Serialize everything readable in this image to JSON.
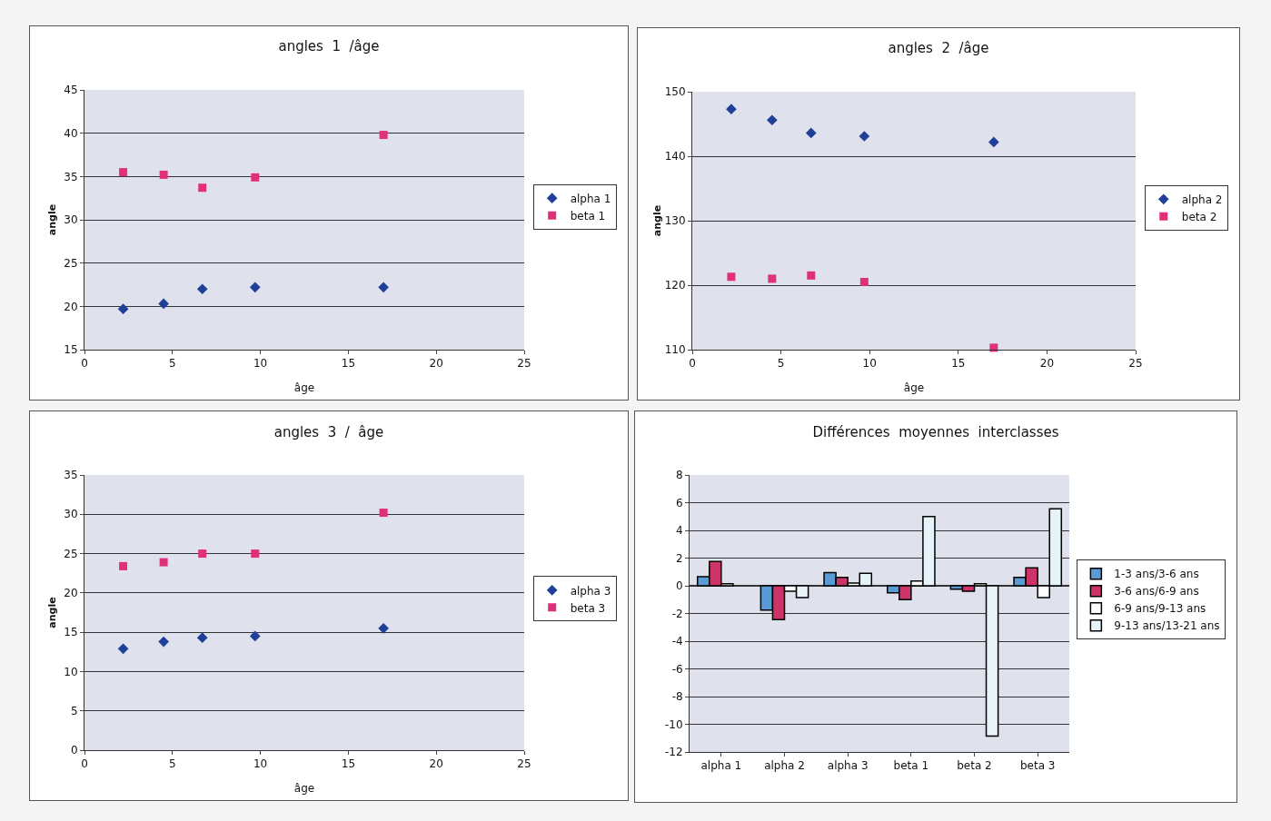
{
  "chart_data": [
    {
      "type": "scatter",
      "title": "angles  1  /âge",
      "xlabel": "âge",
      "ylabel": "angle",
      "xlim": [
        0,
        25
      ],
      "xticks": [
        0,
        5,
        10,
        15,
        20,
        25
      ],
      "ylim": [
        15,
        45
      ],
      "yticks": [
        15,
        20,
        25,
        30,
        35,
        40,
        45
      ],
      "grid": "y",
      "legend": "right",
      "x": [
        2.2,
        4.5,
        6.7,
        9.7,
        17
      ],
      "series": [
        {
          "name": "alpha 1",
          "color": "#1f3f99",
          "marker": "diamond",
          "values": [
            19.7,
            20.3,
            22,
            22.2,
            22.2
          ]
        },
        {
          "name": "beta 1",
          "color": "#e0307a",
          "marker": "square",
          "values": [
            35.5,
            35.2,
            33.7,
            34.9,
            39.8
          ]
        }
      ]
    },
    {
      "type": "scatter",
      "title": "angles  2  /âge",
      "xlabel": "âge",
      "ylabel": "angle",
      "xlim": [
        0,
        25
      ],
      "xticks": [
        0,
        5,
        10,
        15,
        20,
        25
      ],
      "ylim": [
        110,
        150
      ],
      "yticks": [
        110,
        120,
        130,
        140,
        150
      ],
      "grid": "y",
      "legend": "right",
      "x": [
        2.2,
        4.5,
        6.7,
        9.7,
        17
      ],
      "series": [
        {
          "name": "alpha 2",
          "color": "#1f3f99",
          "marker": "diamond",
          "values": [
            147.3,
            145.6,
            143.6,
            143.1,
            142.2
          ]
        },
        {
          "name": "beta 2",
          "color": "#e0307a",
          "marker": "square",
          "values": [
            121.3,
            121,
            121.5,
            120.5,
            110.3
          ]
        }
      ]
    },
    {
      "type": "scatter",
      "title": "angles  3  /  âge",
      "xlabel": "âge",
      "ylabel": "angle",
      "xlim": [
        0,
        25
      ],
      "xticks": [
        0,
        5,
        10,
        15,
        20,
        25
      ],
      "ylim": [
        0,
        35
      ],
      "yticks": [
        0,
        5,
        10,
        15,
        20,
        25,
        30,
        35
      ],
      "grid": "y",
      "legend": "right",
      "x": [
        2.2,
        4.5,
        6.7,
        9.7,
        17
      ],
      "series": [
        {
          "name": "alpha 3",
          "color": "#1f3f99",
          "marker": "diamond",
          "values": [
            12.9,
            13.8,
            14.3,
            14.5,
            15.5
          ]
        },
        {
          "name": "beta 3",
          "color": "#e0307a",
          "marker": "square",
          "values": [
            23.4,
            23.9,
            25,
            25,
            30.2
          ]
        }
      ]
    },
    {
      "type": "bar",
      "title": "Différences  moyennes  interclasses",
      "categories": [
        "alpha 1",
        "alpha 2",
        "alpha 3",
        "beta 1",
        "beta 2",
        "beta 3"
      ],
      "ylim": [
        -12,
        8
      ],
      "yticks": [
        -12,
        -10,
        -8,
        -6,
        -4,
        -2,
        0,
        2,
        4,
        6,
        8
      ],
      "grid": "y",
      "legend": "right",
      "series": [
        {
          "name": "1-3 ans/3-6 ans",
          "color": "#5b9bd5",
          "values": [
            0.65,
            -1.75,
            0.95,
            -0.5,
            -0.25,
            0.6
          ]
        },
        {
          "name": "3-6 ans/6-9 ans",
          "color": "#cc3366",
          "values": [
            1.75,
            -2.45,
            0.6,
            -1.0,
            -0.4,
            1.3
          ]
        },
        {
          "name": "6-9 ans/9-13 ans",
          "color": "#ffffff",
          "values": [
            0.15,
            -0.4,
            0.2,
            0.35,
            0.15,
            -0.85
          ]
        },
        {
          "name": "9-13 ans/13-21 ans",
          "color": "#e6f3f8",
          "values": [
            null,
            -0.85,
            0.9,
            5.0,
            -10.85,
            5.55
          ]
        }
      ]
    }
  ]
}
